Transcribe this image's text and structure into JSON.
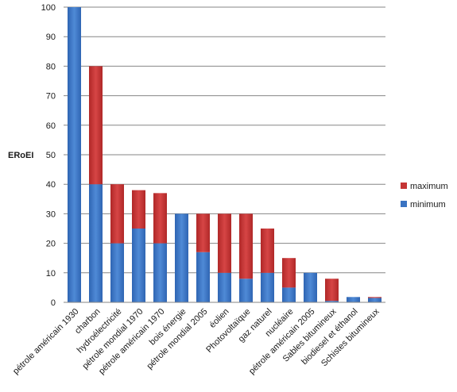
{
  "chart_data": {
    "type": "bar",
    "stacked": true,
    "ylabel": "ERoEI",
    "ylim": [
      0,
      100
    ],
    "ytick_step": 10,
    "grid": true,
    "legend_position": "right",
    "categories": [
      "pétrole américain 1930",
      "charbon",
      "hydroélectricité",
      "pétrole mondial 1970",
      "pétrole américain 1970",
      "bois énergie",
      "pétrole mondial 2005",
      "éolien",
      "Photovoltaïque",
      "gaz naturel",
      "nucléaire",
      "pétrole américain 2005",
      "Sables bitumineux",
      "biodiesel et éthanol",
      "Schistes bitumineux"
    ],
    "series": [
      {
        "name": "minimum",
        "color": "#3a73c2",
        "values": [
          100,
          40,
          20,
          25,
          20,
          30,
          17,
          10,
          8,
          10,
          5,
          10,
          0.5,
          1.8,
          1.5
        ]
      },
      {
        "name": "maximum",
        "color": "#c53535",
        "values": [
          0,
          40,
          20,
          13,
          17,
          0,
          13,
          20,
          22,
          15,
          10,
          0,
          7.5,
          0,
          0.3
        ]
      }
    ],
    "legend_entries": [
      "maximum",
      "minimum"
    ]
  }
}
